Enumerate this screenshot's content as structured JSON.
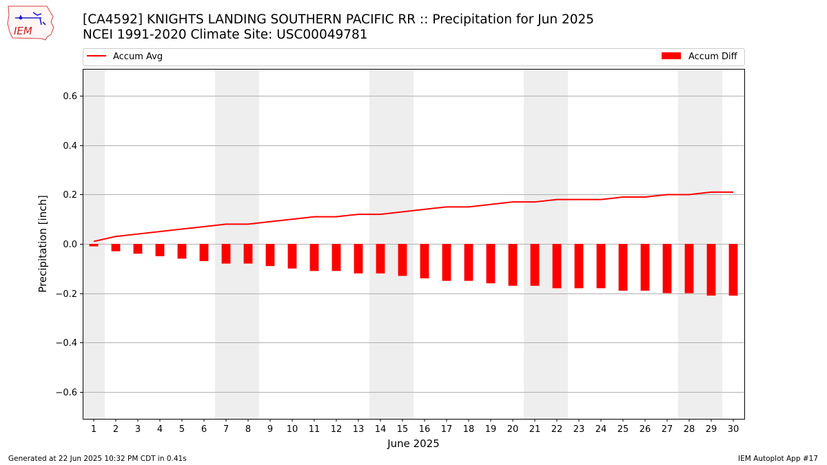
{
  "header": {
    "logo_text": "IEM",
    "title_line1": "[CA4592] KNIGHTS LANDING SOUTHERN PACIFIC RR :: Precipitation for Jun 2025",
    "title_line2": "NCEI 1991-2020 Climate Site: USC00049781"
  },
  "footer": {
    "generated": "Generated at 22 Jun 2025 10:32 PM CDT in 0.41s",
    "app": "IEM Autoplot App #17"
  },
  "colors": {
    "series": "#ff0000",
    "weekend_band": "#eeeeee",
    "grid": "#b0b0b0"
  },
  "chart_data": {
    "type": "bar",
    "xlabel": "June 2025",
    "ylabel": "Precipitation [inch]",
    "ylim": [
      -0.71,
      0.71
    ],
    "yticks": [
      {
        "v": 0.6,
        "label": "0.6"
      },
      {
        "v": 0.4,
        "label": "0.4"
      },
      {
        "v": 0.2,
        "label": "0.2"
      },
      {
        "v": 0.0,
        "label": "0.0"
      },
      {
        "v": -0.2,
        "label": "−0.2"
      },
      {
        "v": -0.4,
        "label": "−0.4"
      },
      {
        "v": -0.6,
        "label": "−0.6"
      }
    ],
    "grid": "horizontal",
    "legend_placement": "top, above plot",
    "categories": [
      "1",
      "2",
      "3",
      "4",
      "5",
      "6",
      "7",
      "8",
      "9",
      "10",
      "11",
      "12",
      "13",
      "14",
      "15",
      "16",
      "17",
      "18",
      "19",
      "20",
      "21",
      "22",
      "23",
      "24",
      "25",
      "26",
      "27",
      "28",
      "29",
      "30"
    ],
    "weekend_days": [
      1,
      7,
      8,
      14,
      15,
      21,
      22,
      28,
      29
    ],
    "series": [
      {
        "name": "Accum Avg",
        "kind": "line",
        "values": [
          0.01,
          0.03,
          0.04,
          0.05,
          0.06,
          0.07,
          0.08,
          0.08,
          0.09,
          0.1,
          0.11,
          0.11,
          0.12,
          0.12,
          0.13,
          0.14,
          0.15,
          0.15,
          0.16,
          0.17,
          0.17,
          0.18,
          0.18,
          0.18,
          0.19,
          0.19,
          0.2,
          0.2,
          0.21,
          0.21
        ]
      },
      {
        "name": "Accum Diff",
        "kind": "bar",
        "values": [
          -0.01,
          -0.03,
          -0.04,
          -0.05,
          -0.06,
          -0.07,
          -0.08,
          -0.08,
          -0.09,
          -0.1,
          -0.11,
          -0.11,
          -0.12,
          -0.12,
          -0.13,
          -0.14,
          -0.15,
          -0.15,
          -0.16,
          -0.17,
          -0.17,
          -0.18,
          -0.18,
          -0.18,
          -0.19,
          -0.19,
          -0.2,
          -0.2,
          -0.21,
          -0.21
        ]
      }
    ]
  }
}
